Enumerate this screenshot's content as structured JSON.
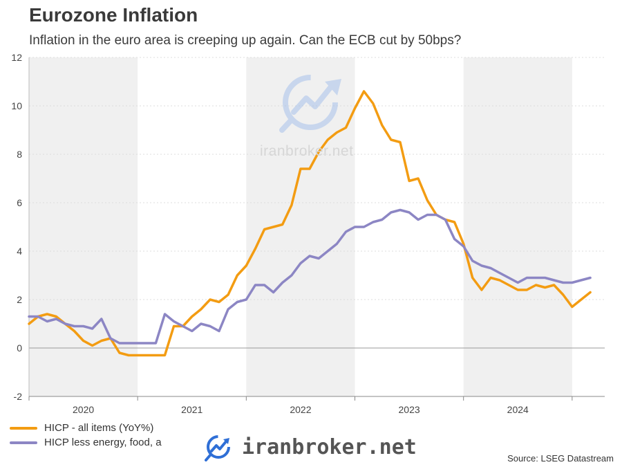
{
  "header": {
    "title": "Eurozone Inflation",
    "subtitle": "Inflation in the euro area is creeping up again. Can the ECB cut by 50bps?"
  },
  "footer": {
    "source": "Source: LSEG Datastream"
  },
  "watermark": {
    "center_text": "iranbroker.net",
    "bottom_text": "iranbroker.net"
  },
  "colors": {
    "hicp_all": "#f39c12",
    "hicp_core": "#8c86c4",
    "band": "#f0f0f0"
  },
  "chart_data": {
    "type": "line",
    "title": "Eurozone Inflation",
    "subtitle": "Inflation in the euro area is creeping up again. Can the ECB cut by 50bps?",
    "x_unit": "year (decimal)",
    "xlim": [
      2019.5,
      2024.8
    ],
    "ylim": [
      -2,
      12
    ],
    "yticks": [
      -2,
      0,
      2,
      4,
      6,
      8,
      10,
      12
    ],
    "xtick_labels": [
      "2020",
      "2021",
      "2022",
      "2023",
      "2024"
    ],
    "shaded_years": [
      2020,
      2022,
      2024
    ],
    "grid": true,
    "legend_placement": "bottom-left",
    "series": [
      {
        "name": "HICP - all items (YoY%)",
        "color": "#f39c12",
        "projection_from_index": 64,
        "points": [
          [
            2019.5,
            1.0
          ],
          [
            2019.583,
            1.3
          ],
          [
            2019.667,
            1.4
          ],
          [
            2019.75,
            1.3
          ],
          [
            2019.833,
            1.0
          ],
          [
            2019.917,
            0.7
          ],
          [
            2020.0,
            0.3
          ],
          [
            2020.083,
            0.1
          ],
          [
            2020.167,
            0.3
          ],
          [
            2020.25,
            0.4
          ],
          [
            2020.333,
            -0.2
          ],
          [
            2020.417,
            -0.3
          ],
          [
            2020.5,
            -0.3
          ],
          [
            2020.583,
            -0.3
          ],
          [
            2020.667,
            -0.3
          ],
          [
            2020.75,
            -0.3
          ],
          [
            2020.833,
            0.9
          ],
          [
            2020.917,
            0.9
          ],
          [
            2021.0,
            1.3
          ],
          [
            2021.083,
            1.6
          ],
          [
            2021.167,
            2.0
          ],
          [
            2021.25,
            1.9
          ],
          [
            2021.333,
            2.2
          ],
          [
            2021.417,
            3.0
          ],
          [
            2021.5,
            3.4
          ],
          [
            2021.583,
            4.1
          ],
          [
            2021.667,
            4.9
          ],
          [
            2021.75,
            5.0
          ],
          [
            2021.833,
            5.1
          ],
          [
            2021.917,
            5.9
          ],
          [
            2022.0,
            7.4
          ],
          [
            2022.083,
            7.4
          ],
          [
            2022.167,
            8.1
          ],
          [
            2022.25,
            8.6
          ],
          [
            2022.333,
            8.9
          ],
          [
            2022.417,
            9.1
          ],
          [
            2022.5,
            9.9
          ],
          [
            2022.583,
            10.6
          ],
          [
            2022.667,
            10.1
          ],
          [
            2022.75,
            9.2
          ],
          [
            2022.833,
            8.6
          ],
          [
            2022.917,
            8.5
          ],
          [
            2023.0,
            6.9
          ],
          [
            2023.083,
            7.0
          ],
          [
            2023.167,
            6.1
          ],
          [
            2023.25,
            5.5
          ],
          [
            2023.333,
            5.3
          ],
          [
            2023.417,
            5.2
          ],
          [
            2023.5,
            4.3
          ],
          [
            2023.583,
            2.9
          ],
          [
            2023.667,
            2.4
          ],
          [
            2023.75,
            2.9
          ],
          [
            2023.833,
            2.8
          ],
          [
            2023.917,
            2.6
          ],
          [
            2024.0,
            2.4
          ],
          [
            2024.083,
            2.4
          ],
          [
            2024.167,
            2.6
          ],
          [
            2024.25,
            2.5
          ],
          [
            2024.333,
            2.6
          ],
          [
            2024.417,
            2.2
          ],
          [
            2024.5,
            1.7
          ],
          [
            2024.583,
            2.0
          ],
          [
            2024.667,
            2.3
          ]
        ]
      },
      {
        "name": "HICP less energy, food, a",
        "color": "#8c86c4",
        "projection_from_index": 64,
        "points": [
          [
            2019.5,
            1.3
          ],
          [
            2019.583,
            1.3
          ],
          [
            2019.667,
            1.1
          ],
          [
            2019.75,
            1.2
          ],
          [
            2019.833,
            1.0
          ],
          [
            2019.917,
            0.9
          ],
          [
            2020.0,
            0.9
          ],
          [
            2020.083,
            0.8
          ],
          [
            2020.167,
            1.2
          ],
          [
            2020.25,
            0.4
          ],
          [
            2020.333,
            0.2
          ],
          [
            2020.417,
            0.2
          ],
          [
            2020.5,
            0.2
          ],
          [
            2020.583,
            0.2
          ],
          [
            2020.667,
            0.2
          ],
          [
            2020.75,
            1.4
          ],
          [
            2020.833,
            1.1
          ],
          [
            2020.917,
            0.9
          ],
          [
            2021.0,
            0.7
          ],
          [
            2021.083,
            1.0
          ],
          [
            2021.167,
            0.9
          ],
          [
            2021.25,
            0.7
          ],
          [
            2021.333,
            1.6
          ],
          [
            2021.417,
            1.9
          ],
          [
            2021.5,
            2.0
          ],
          [
            2021.583,
            2.6
          ],
          [
            2021.667,
            2.6
          ],
          [
            2021.75,
            2.3
          ],
          [
            2021.833,
            2.7
          ],
          [
            2021.917,
            3.0
          ],
          [
            2022.0,
            3.5
          ],
          [
            2022.083,
            3.8
          ],
          [
            2022.167,
            3.7
          ],
          [
            2022.25,
            4.0
          ],
          [
            2022.333,
            4.3
          ],
          [
            2022.417,
            4.8
          ],
          [
            2022.5,
            5.0
          ],
          [
            2022.583,
            5.0
          ],
          [
            2022.667,
            5.2
          ],
          [
            2022.75,
            5.3
          ],
          [
            2022.833,
            5.6
          ],
          [
            2022.917,
            5.7
          ],
          [
            2023.0,
            5.6
          ],
          [
            2023.083,
            5.3
          ],
          [
            2023.167,
            5.5
          ],
          [
            2023.25,
            5.5
          ],
          [
            2023.333,
            5.3
          ],
          [
            2023.417,
            4.5
          ],
          [
            2023.5,
            4.2
          ],
          [
            2023.583,
            3.6
          ],
          [
            2023.667,
            3.4
          ],
          [
            2023.75,
            3.3
          ],
          [
            2023.833,
            3.1
          ],
          [
            2023.917,
            2.9
          ],
          [
            2024.0,
            2.7
          ],
          [
            2024.083,
            2.9
          ],
          [
            2024.167,
            2.9
          ],
          [
            2024.25,
            2.9
          ],
          [
            2024.333,
            2.8
          ],
          [
            2024.417,
            2.7
          ],
          [
            2024.5,
            2.7
          ],
          [
            2024.583,
            2.8
          ],
          [
            2024.667,
            2.9
          ]
        ]
      }
    ]
  }
}
